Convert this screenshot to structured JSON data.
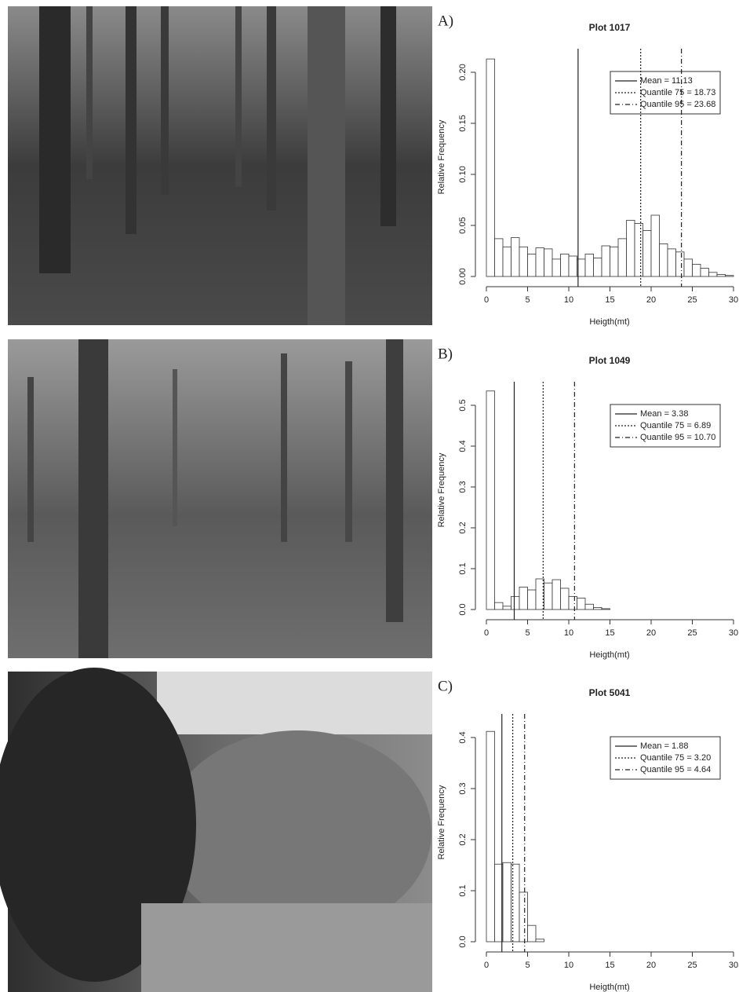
{
  "chart_data": [
    {
      "type": "histogram",
      "panel": "A)",
      "title": "Plot 1017",
      "x_label": "Heigth(mt)",
      "y_label": "Relative Frequency",
      "bins": [
        0,
        1,
        2,
        3,
        4,
        5,
        6,
        7,
        8,
        9,
        10,
        11,
        12,
        13,
        14,
        15,
        16,
        17,
        18,
        19,
        20,
        21,
        22,
        23,
        24,
        25,
        26,
        27,
        28,
        29,
        30
      ],
      "values": [
        0.213,
        0.037,
        0.029,
        0.038,
        0.029,
        0.022,
        0.028,
        0.027,
        0.017,
        0.022,
        0.02,
        0.017,
        0.022,
        0.018,
        0.03,
        0.029,
        0.037,
        0.055,
        0.052,
        0.045,
        0.06,
        0.032,
        0.027,
        0.024,
        0.017,
        0.012,
        0.008,
        0.004,
        0.002,
        0.001
      ],
      "xlim": [
        0,
        30
      ],
      "xticks": [
        0,
        5,
        10,
        15,
        20,
        25,
        30
      ],
      "ylim": [
        0,
        0.22
      ],
      "yticks": [
        {
          "value": 0,
          "label": "0.00"
        },
        {
          "value": 0.05,
          "label": "0.05"
        },
        {
          "value": 0.1,
          "label": "0.10"
        },
        {
          "value": 0.15,
          "label": "0.15"
        },
        {
          "value": 0.2,
          "label": "0.20"
        }
      ],
      "lines": [
        {
          "name": "Mean = 11.13",
          "value": 11.13,
          "dash": "solid"
        },
        {
          "name": "Quantile 75 = 18.73",
          "value": 18.73,
          "dash": "dotted"
        },
        {
          "name": "Quantile 95 = 23.68",
          "value": 23.68,
          "dash": "dashdot"
        }
      ]
    },
    {
      "type": "histogram",
      "panel": "B)",
      "title": "Plot 1049",
      "x_label": "Heigth(mt)",
      "y_label": "Relative Frequency",
      "bins": [
        0,
        1,
        2,
        3,
        4,
        5,
        6,
        7,
        8,
        9,
        10,
        11,
        12,
        13,
        14,
        15,
        16,
        17,
        18,
        19,
        20,
        21,
        22,
        23,
        24,
        25,
        26,
        27,
        28,
        29,
        30
      ],
      "values": [
        0.535,
        0.017,
        0.008,
        0.032,
        0.055,
        0.048,
        0.075,
        0.065,
        0.073,
        0.052,
        0.032,
        0.028,
        0.013,
        0.005,
        0.002,
        0,
        0,
        0,
        0,
        0,
        0,
        0,
        0,
        0,
        0,
        0,
        0,
        0,
        0,
        0
      ],
      "xlim": [
        0,
        30
      ],
      "xticks": [
        0,
        5,
        10,
        15,
        20,
        25,
        30
      ],
      "ylim": [
        0,
        0.55
      ],
      "yticks": [
        {
          "value": 0,
          "label": "0.0"
        },
        0.1,
        0.2,
        0.3,
        0.4,
        0.5
      ],
      "lines": [
        {
          "name": "Mean = 3.38",
          "value": 3.38,
          "dash": "solid"
        },
        {
          "name": "Quantile 75 = 6.89",
          "value": 6.89,
          "dash": "dotted"
        },
        {
          "name": "Quantile 95 = 10.70",
          "value": 10.7,
          "dash": "dashdot"
        }
      ]
    },
    {
      "type": "histogram",
      "panel": "C)",
      "title": "Plot 5041",
      "x_label": "Heigth(mt)",
      "y_label": "Relative Frequency",
      "bins": [
        0,
        1,
        2,
        3,
        4,
        5,
        6,
        7,
        8,
        9,
        10,
        11,
        12,
        13,
        14,
        15,
        16,
        17,
        18,
        19,
        20,
        21,
        22,
        23,
        24,
        25,
        26,
        27,
        28,
        29,
        30
      ],
      "values": [
        0.412,
        0.152,
        0.155,
        0.152,
        0.097,
        0.032,
        0.005,
        0,
        0,
        0,
        0,
        0,
        0,
        0,
        0,
        0,
        0,
        0,
        0,
        0,
        0,
        0,
        0,
        0,
        0,
        0,
        0,
        0,
        0,
        0
      ],
      "xlim": [
        0,
        30
      ],
      "xticks": [
        0,
        5,
        10,
        15,
        20,
        25,
        30
      ],
      "ylim": [
        0,
        0.44
      ],
      "yticks": [
        {
          "value": 0,
          "label": "0.0"
        },
        0.1,
        0.2,
        0.3,
        0.4
      ],
      "lines": [
        {
          "name": "Mean = 1.88",
          "value": 1.88,
          "dash": "solid"
        },
        {
          "name": "Quantile 75 = 3.20",
          "value": 3.2,
          "dash": "dotted"
        },
        {
          "name": "Quantile 95 = 4.64",
          "value": 4.64,
          "dash": "dashdot"
        }
      ]
    }
  ]
}
